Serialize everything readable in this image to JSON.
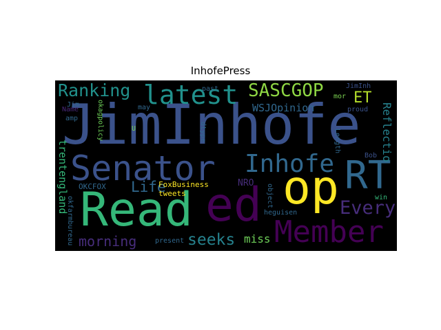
{
  "figure": {
    "title": "InhofePress",
    "background": "#000000"
  },
  "words": {
    "jiminhofe": {
      "text": "JimInhofe",
      "color": "#3b528b"
    },
    "senator": {
      "text": "Senator",
      "color": "#3b528b"
    },
    "read": {
      "text": "Read",
      "color": "#35b779"
    },
    "ed": {
      "text": "ed",
      "color": "#440154"
    },
    "op": {
      "text": "op",
      "color": "#fde725"
    },
    "rt": {
      "text": "RT",
      "color": "#31688e"
    },
    "member": {
      "text": "Member",
      "color": "#440154"
    },
    "latest": {
      "text": "latest",
      "color": "#21918c"
    },
    "sascgop": {
      "text": "SASCGOP",
      "color": "#8fd744"
    },
    "ranking": {
      "text": "Ranking",
      "color": "#21918c"
    },
    "inhofe": {
      "text": "Inhofe",
      "color": "#31688e"
    },
    "et": {
      "text": "ET",
      "color": "#b5de2b"
    },
    "every": {
      "text": "Every",
      "color": "#472d7b"
    },
    "life": {
      "text": "Life",
      "color": "#31688e"
    },
    "morning": {
      "text": "morning",
      "color": "#472d7b"
    },
    "seeks": {
      "text": "seeks",
      "color": "#26828e"
    },
    "miss": {
      "text": "miss",
      "color": "#6ece58"
    },
    "wsjopinion": {
      "text": "WSJOpinion",
      "color": "#31688e"
    },
    "reflectio": {
      "text": "Reflectio",
      "color": "#26828e"
    },
    "trentengland": {
      "text": "trentengland",
      "color": "#35b779"
    },
    "nro": {
      "text": "NRO",
      "color": "#472d7b"
    },
    "foxbusiness": {
      "text": "FoxBusiness",
      "color": "#fde725"
    },
    "tweets": {
      "text": "tweets",
      "color": "#fde725"
    },
    "okcfox": {
      "text": "OKCFOX",
      "color": "#31688e"
    },
    "okfarmbureau": {
      "text": "okfarmbureau",
      "color": "#31688e"
    },
    "okagpolicy": {
      "text": "okagpolicy",
      "color": "#6ece58"
    },
    "jiminh": {
      "text": "JimInh",
      "color": "#3b528b"
    },
    "mor": {
      "text": "mor",
      "color": "#7ad151"
    },
    "proud": {
      "text": "proud",
      "color": "#3b528b"
    },
    "bob": {
      "text": "Bob",
      "color": "#3b528b"
    },
    "length": {
      "text": "Length",
      "color": "#31688e"
    },
    "object": {
      "text": "object",
      "color": "#31688e"
    },
    "heguisen": {
      "text": "heguisen",
      "color": "#31688e"
    },
    "win": {
      "text": "win",
      "color": "#35b779"
    },
    "present": {
      "text": "present",
      "color": "#31688e"
    },
    "past": {
      "text": "past",
      "color": "#31688e"
    },
    "may": {
      "text": "may",
      "color": "#31688e"
    },
    "jim": {
      "text": "Jim",
      "color": "#31688e"
    },
    "name": {
      "text": "Name",
      "color": "#482878"
    },
    "amp": {
      "text": "amp",
      "color": "#31688e"
    },
    "dtype": {
      "text": "dtype",
      "color": "#31688e"
    },
    "u": {
      "text": "U",
      "color": "#7ad151"
    }
  }
}
